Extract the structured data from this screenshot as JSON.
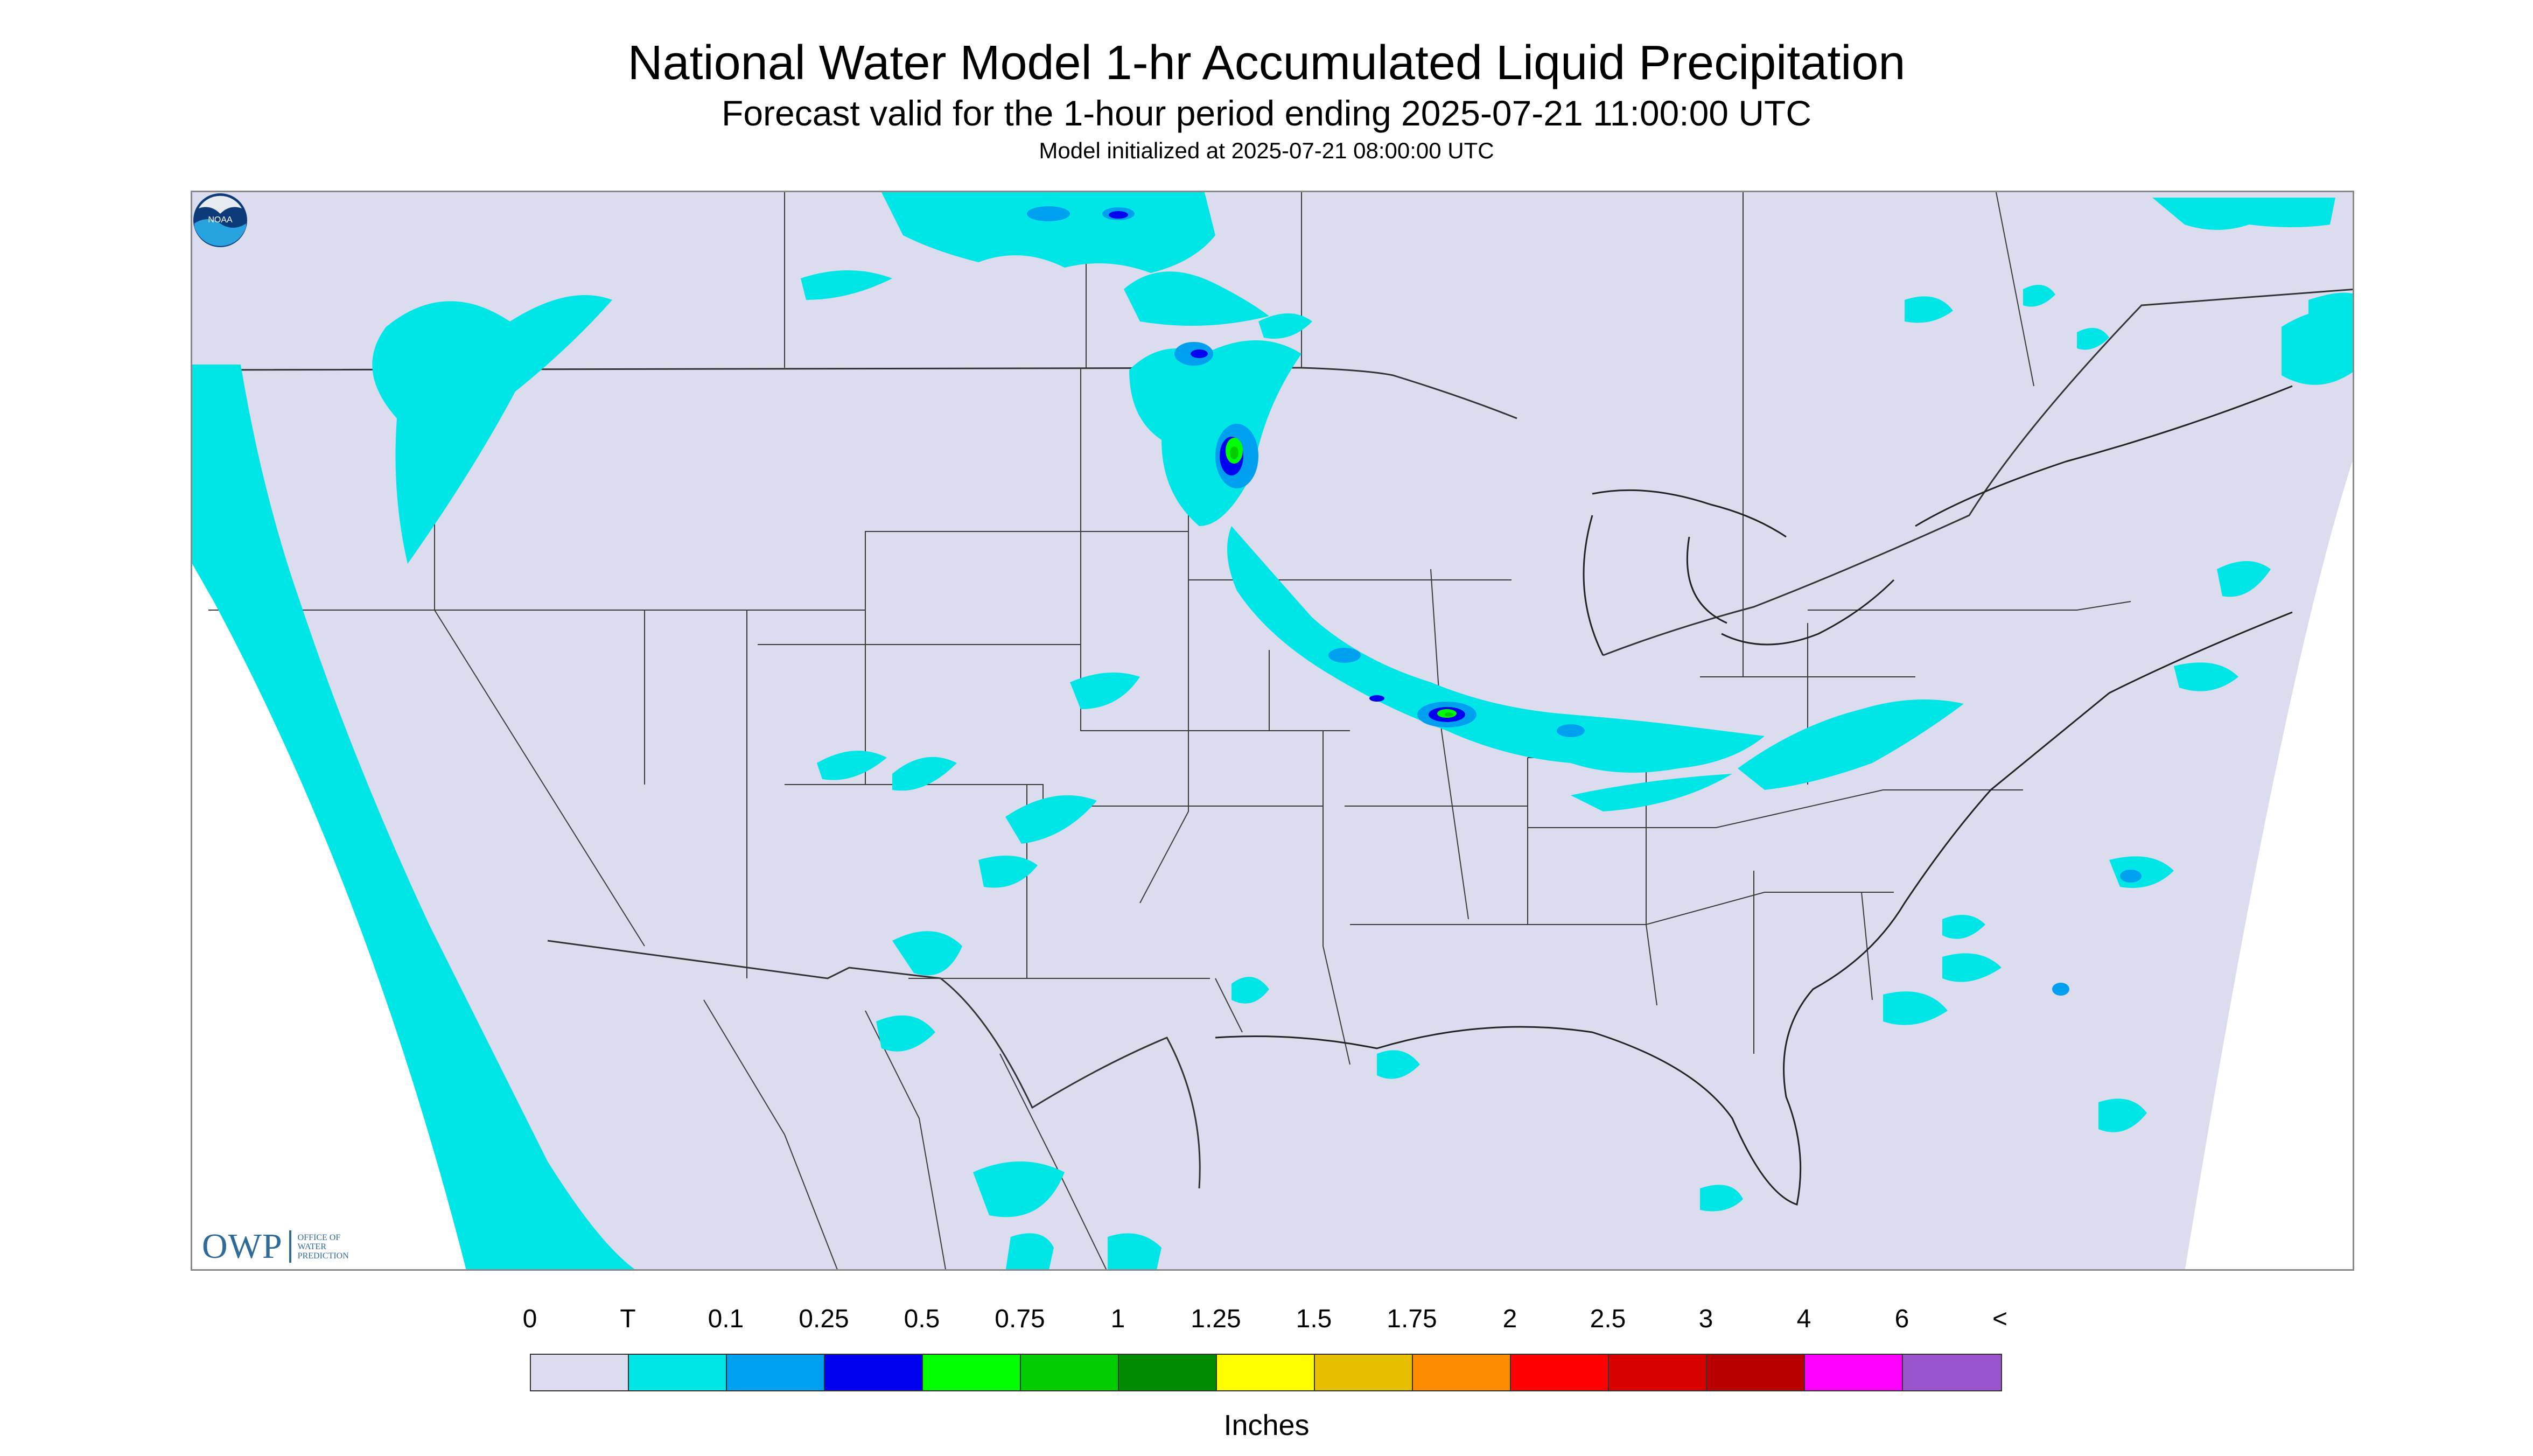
{
  "title": "National Water Model 1-hr Accumulated Liquid Precipitation",
  "subtitle": "Forecast valid for the 1-hour period ending 2025-07-21 11:00:00 UTC",
  "init_text": "Model initialized at 2025-07-21 08:00:00 UTC",
  "map": {
    "region": "CONUS",
    "background_color": "#dcdcef",
    "outside_color": "#ffffff",
    "border_color": "#3a3a3a"
  },
  "logos": {
    "owp_mark": "OWP",
    "owp_text": "OFFICE OF WATER PREDICTION",
    "noaa_icon": "noaa-logo-icon",
    "noaa_text": "NOAA"
  },
  "legend": {
    "units": "Inches",
    "labels": [
      "0",
      "T",
      "0.1",
      "0.25",
      "0.5",
      "0.75",
      "1",
      "1.25",
      "1.5",
      "1.75",
      "2",
      "2.5",
      "3",
      "4",
      "6",
      "<"
    ],
    "colors": [
      "#dcdcef",
      "#00e5e5",
      "#00a0f0",
      "#0000ee",
      "#00ff00",
      "#00cc00",
      "#008c00",
      "#ffff00",
      "#e6c000",
      "#ff8c00",
      "#ff0000",
      "#d80000",
      "#b80000",
      "#ff00ff",
      "#9a55cc"
    ]
  }
}
